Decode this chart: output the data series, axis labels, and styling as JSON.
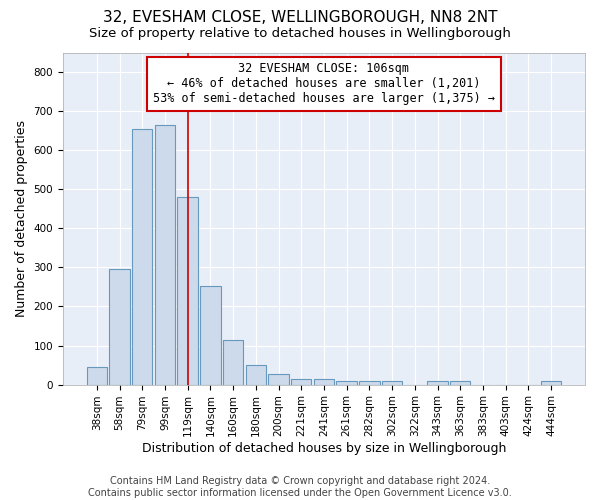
{
  "title1": "32, EVESHAM CLOSE, WELLINGBOROUGH, NN8 2NT",
  "title2": "Size of property relative to detached houses in Wellingborough",
  "xlabel": "Distribution of detached houses by size in Wellingborough",
  "ylabel": "Number of detached properties",
  "footer1": "Contains HM Land Registry data © Crown copyright and database right 2024.",
  "footer2": "Contains public sector information licensed under the Open Government Licence v3.0.",
  "categories": [
    "38sqm",
    "58sqm",
    "79sqm",
    "99sqm",
    "119sqm",
    "140sqm",
    "160sqm",
    "180sqm",
    "200sqm",
    "221sqm",
    "241sqm",
    "261sqm",
    "282sqm",
    "302sqm",
    "322sqm",
    "343sqm",
    "363sqm",
    "383sqm",
    "403sqm",
    "424sqm",
    "444sqm"
  ],
  "values": [
    45,
    295,
    655,
    665,
    480,
    252,
    115,
    50,
    27,
    15,
    15,
    8,
    8,
    8,
    0,
    8,
    8,
    0,
    0,
    0,
    8
  ],
  "bar_color": "#ccdaeb",
  "bar_edge_color": "#6699bb",
  "annotation_box_color": "#cc0000",
  "vline_x": 4,
  "vline_color": "#cc0000",
  "annotation_title": "32 EVESHAM CLOSE: 106sqm",
  "annotation_line1": "← 46% of detached houses are smaller (1,201)",
  "annotation_line2": "53% of semi-detached houses are larger (1,375) →",
  "ylim": [
    0,
    850
  ],
  "yticks": [
    0,
    100,
    200,
    300,
    400,
    500,
    600,
    700,
    800
  ],
  "background_color": "#e8eef8",
  "grid_color": "#ffffff",
  "fig_background": "#ffffff",
  "title1_fontsize": 11,
  "title2_fontsize": 9.5,
  "xlabel_fontsize": 9,
  "ylabel_fontsize": 9,
  "tick_fontsize": 7.5,
  "annotation_fontsize": 8.5,
  "footer_fontsize": 7
}
